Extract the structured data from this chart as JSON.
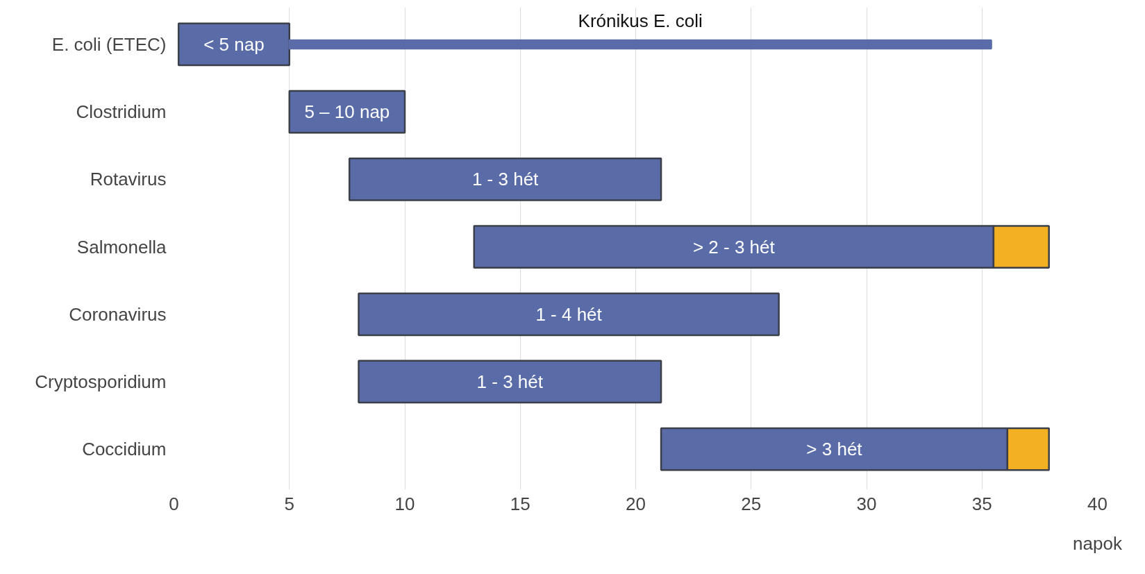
{
  "chart_data": {
    "type": "bar",
    "orientation": "horizontal",
    "xlabel": "napok",
    "categories": [
      "E. coli (ETEC)",
      "Clostridium",
      "Rotavirus",
      "Salmonella",
      "Coronavirus",
      "Cryptosporidium",
      "Coccidium"
    ],
    "series": [
      {
        "color": "#5a6ca8",
        "base": [
          0.2,
          5,
          7.6,
          13,
          8,
          8,
          21.1
        ],
        "values": [
          4.8,
          5,
          13.5,
          22.5,
          18.2,
          13.1,
          15
        ]
      },
      {
        "color": "#5a6ca8",
        "base": [
          5,
          null,
          null,
          null,
          null,
          null,
          null
        ],
        "values": [
          30.4,
          null,
          null,
          null,
          null,
          null,
          null
        ]
      },
      {
        "color": "#f4b023",
        "base": [
          null,
          null,
          null,
          35.5,
          null,
          null,
          36.1
        ],
        "values": [
          null,
          null,
          null,
          2.4,
          null,
          null,
          1.8
        ]
      }
    ],
    "annotations": [
      "Krónikus E. coli",
      "< 5 nap",
      "5 – 10 nap",
      "1 - 3 hét",
      "> 2 - 3 hét",
      "1 - 4 hét",
      "1 - 3 hét",
      "> 3 hét"
    ],
    "xlim": [
      0,
      40
    ],
    "xticks": [
      0,
      5,
      10,
      15,
      20,
      25,
      30,
      35,
      40
    ],
    "grid": "x"
  }
}
